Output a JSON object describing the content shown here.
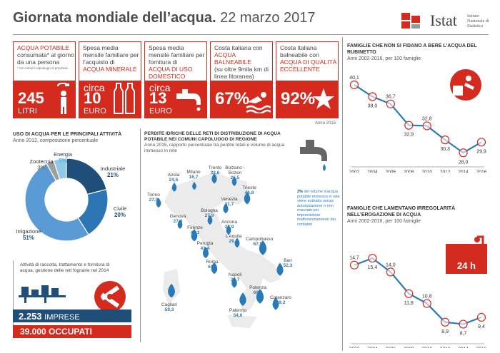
{
  "header": {
    "title_bold": "Giornata mondiale dell’acqua.",
    "title_date": "22 marzo 2017",
    "logo_name": "Istat",
    "logo_sub": "Istituto Nazionale di Statistica"
  },
  "cards": [
    {
      "text_red": "ACQUA POTABILE",
      "text": "consumata* al giorno da una persona",
      "note": "* nei comuni capoluogo di provincia",
      "value": "245",
      "unit": "LITRI",
      "icon": "shower-person-icon"
    },
    {
      "text": "Spesa media mensile familiare per l’acquisto di",
      "text_red": "ACQUA MINERALE",
      "pre": "circa",
      "value": "10",
      "unit": "EURO",
      "icon": "bottles-icon"
    },
    {
      "text": "Spesa media mensile familiare per fornitura di",
      "text_red": "ACQUA DI USO DOMESTICO",
      "pre": "circa",
      "value": "13",
      "unit": "EURO",
      "icon": "faucet-icon"
    },
    {
      "text": "Costa italiana con",
      "text_red": "ACQUA BALNEABILE",
      "text2": "(su oltre 9mila km di linea litoranea)",
      "value": "67%",
      "icon": "swimmer-icon"
    },
    {
      "text": "Costa italiana balneabile con",
      "text_red": "ACQUA DI QUALITÀ ECCELLENTE",
      "value": "92%",
      "note": "Anno 2015",
      "icon": "starfish-icon"
    }
  ],
  "uses": {
    "title": "USO DI ACQUA PER LE PRINCIPALI ATTIVITÀ",
    "subtitle": "Anno 2012, composizione percentuale"
  },
  "chart_data": [
    {
      "type": "pie",
      "title": "USO DI ACQUA PER LE PRINCIPALI ATTIVITÀ",
      "subtitle": "Anno 2012, composizione percentuale",
      "categories": [
        "Industriale",
        "Civile",
        "Irrigazione",
        "Zootecnia",
        "Energia"
      ],
      "values": [
        21,
        20,
        51,
        3,
        5
      ],
      "colors": [
        "#1f4e79",
        "#2e75b6",
        "#5b9bd5",
        "#9e9e9e",
        "#8ecae6"
      ],
      "value_labels": [
        "21%",
        "20%",
        "51%",
        "3%",
        "5%"
      ]
    },
    {
      "type": "line",
      "title": "FAMIGLIE CHE NON SI FIDANO A BERE L’ACQUA DEL RUBINETTO",
      "subtitle": "Anni 2002-2016, per 100 famiglie",
      "x": [
        "2002",
        "2004",
        "2006",
        "2008",
        "2010",
        "2012",
        "2014",
        "2016"
      ],
      "series": [
        {
          "values": [
            40.1,
            38.0,
            36.7,
            32.9,
            32.8,
            30.3,
            28.0,
            29.9
          ],
          "labels": [
            "40,1",
            "38,0",
            "36,7",
            "32,9",
            "32,8",
            "30,3",
            "28,0",
            "29,9"
          ]
        }
      ],
      "ylim": [
        26,
        42
      ]
    },
    {
      "type": "line",
      "title": "FAMIGLIE CHE LAMENTANO IRREGOLARITÀ NELL’EROGAZIONE DI ACQUA",
      "subtitle": "Anni 2002-2016, per 100 famiglie",
      "x": [
        "2002",
        "2004",
        "2006",
        "2008",
        "2010",
        "2012",
        "2014",
        "2016"
      ],
      "series": [
        {
          "values": [
            14.7,
            15.4,
            14.0,
            11.8,
            10.8,
            8.9,
            8.7,
            9.4
          ],
          "labels": [
            "14,7",
            "15,4",
            "14,0",
            "11,8",
            "10,8",
            "8,9",
            "8,7",
            "9,4"
          ]
        }
      ],
      "ylim": [
        7,
        17
      ]
    }
  ],
  "losses": {
    "title": "PERDITE IDRICHE DELLE RETI DI DISTRIBUZIONE DI ACQUA POTABILE NEI COMUNI CAPOLUOGO DI REGIONE",
    "subtitle": "Anno 2015, rapporto percentuale tra perdite totali e volume di acqua immesso in rete",
    "note_num": "3%",
    "note_text": "del volume d’acqua potabile immesso in rete viene sottratto senza autorizzazione o non misurato per imprecisione/ malfunzionamento dei contatori",
    "cities": [
      {
        "name": "Aosta",
        "value": "24,5"
      },
      {
        "name": "Milano",
        "value": "16,7"
      },
      {
        "name": "Trento",
        "value": "32,6"
      },
      {
        "name": "Bolzano - Bozen",
        "value": "26,5"
      },
      {
        "name": "Trieste",
        "value": "46,8"
      },
      {
        "name": "Torino",
        "value": "27,9"
      },
      {
        "name": "Venezia",
        "value": "31,7"
      },
      {
        "name": "Genova",
        "value": "27,4"
      },
      {
        "name": "Bologna",
        "value": "27,9"
      },
      {
        "name": "Ancona",
        "value": "27,9"
      },
      {
        "name": "Firenze",
        "value": "47,1"
      },
      {
        "name": "Perugia",
        "value": "41,4"
      },
      {
        "name": "L’Aquila",
        "value": "29,4"
      },
      {
        "name": "Campobasso",
        "value": "67,9"
      },
      {
        "name": "Roma",
        "value": "44,1"
      },
      {
        "name": "Bari",
        "value": "52,3"
      },
      {
        "name": "Napoli",
        "value": "35,7"
      },
      {
        "name": "Potenza",
        "value": "68,8"
      },
      {
        "name": "Catanzaro",
        "value": "49,2"
      },
      {
        "name": "Cagliari",
        "value": "59,3"
      },
      {
        "name": "Palermo",
        "value": "54,6"
      }
    ]
  },
  "activities": {
    "text": "Attività di raccolta, trattamento e fornitura di acqua, gestione delle reti fognarie nel 2014",
    "imprese_value": "2.253",
    "imprese_label": "IMPRESE",
    "occupati": "39.000 OCCUPATI"
  },
  "trust": {
    "title": "FAMIGLIE CHE NON SI FIDANO A BERE L’ACQUA DEL RUBINETTO",
    "subtitle": "Anni 2002-2016, per 100 famiglie"
  },
  "irreg": {
    "title": "FAMIGLIE CHE LAMENTANO IRREGOLARITÀ NELL’EROGAZIONE DI ACQUA",
    "subtitle": "Anni 2002-2016, per 100 famiglie",
    "badge": "24 h"
  },
  "colors": {
    "red": "#d52b1e",
    "blue": "#2a7ab8",
    "navy": "#1f4e79"
  }
}
